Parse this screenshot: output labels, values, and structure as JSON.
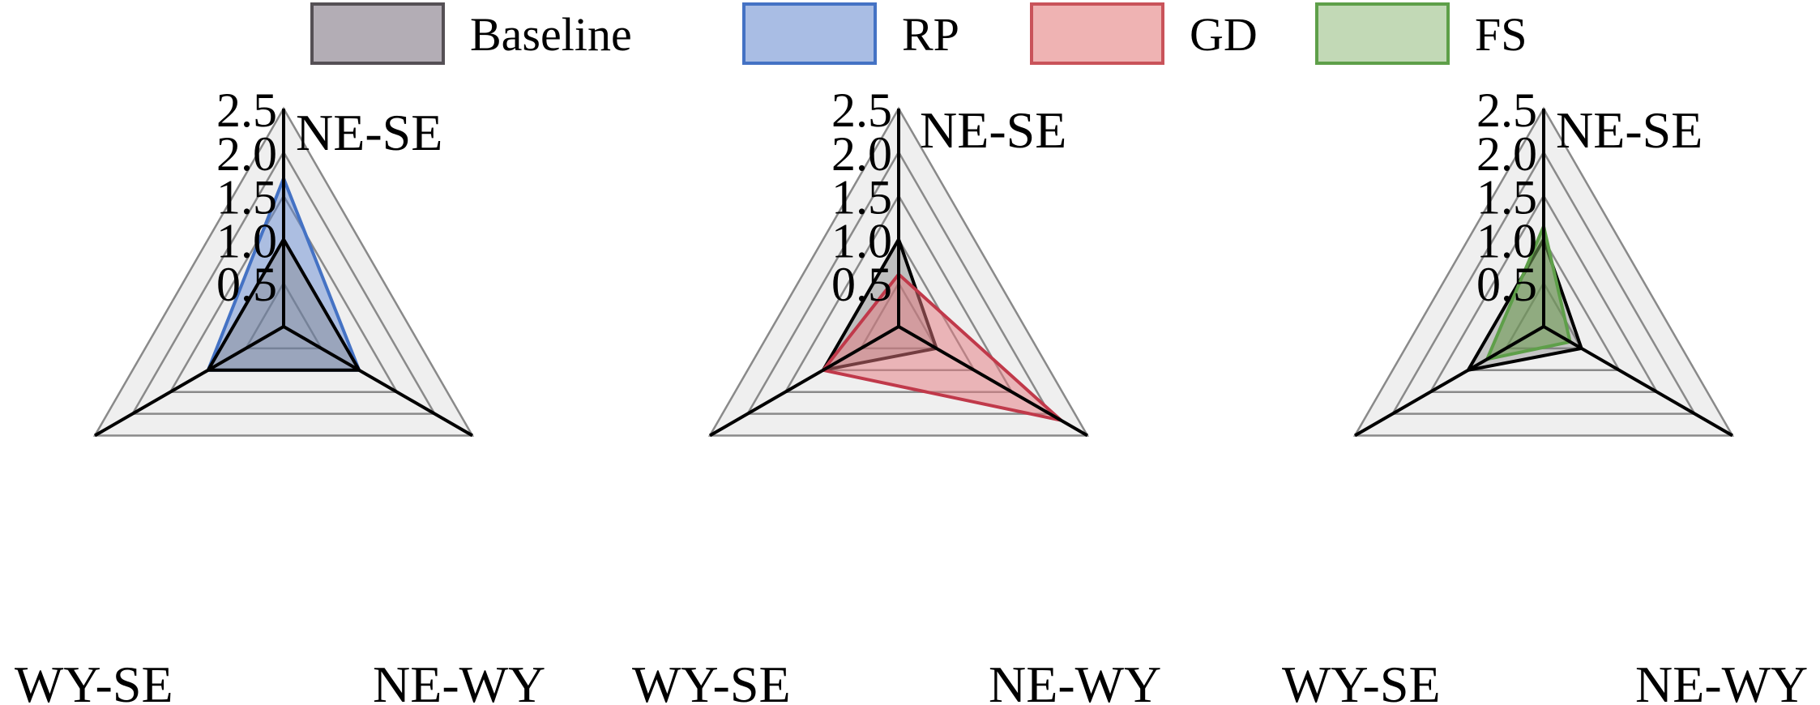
{
  "legend": [
    {
      "label": "Baseline",
      "fill": "#b3adb5",
      "stroke": "#555055"
    },
    {
      "label": "RP",
      "fill": "#a9bde4",
      "stroke": "#4472c4"
    },
    {
      "label": "GD",
      "fill": "#efb3b3",
      "stroke": "#c9535a"
    },
    {
      "label": "FS",
      "fill": "#c2d9b6",
      "stroke": "#5e9f49"
    }
  ],
  "chart_data": [
    {
      "type": "radar",
      "axes": [
        "NE-SE",
        "NE-WY",
        "WY-SE"
      ],
      "ticks": [
        "0.5",
        "1.0",
        "1.5",
        "2.0",
        "2.5"
      ],
      "rlim": [
        0,
        2.5
      ],
      "grid": true,
      "series": [
        {
          "name": "RP",
          "values": [
            1.7,
            1.0,
            1.0
          ],
          "fill": "#5b82d0",
          "fill_opacity": 0.45,
          "stroke": "#4472c4"
        },
        {
          "name": "Baseline",
          "values": [
            1.0,
            1.0,
            1.0
          ],
          "fill": "#777777",
          "fill_opacity": 0.35,
          "stroke": "#000000"
        }
      ]
    },
    {
      "type": "radar",
      "axes": [
        "NE-SE",
        "NE-WY",
        "WY-SE"
      ],
      "ticks": [
        "0.5",
        "1.0",
        "1.5",
        "2.0",
        "2.5"
      ],
      "rlim": [
        0,
        2.5
      ],
      "grid": true,
      "series": [
        {
          "name": "Baseline",
          "values": [
            1.0,
            0.5,
            1.0
          ],
          "fill": "#777777",
          "fill_opacity": 0.4,
          "stroke": "#000000"
        },
        {
          "name": "GD",
          "values": [
            0.6,
            2.15,
            1.0
          ],
          "fill": "#e67a80",
          "fill_opacity": 0.5,
          "stroke": "#c0394a"
        }
      ]
    },
    {
      "type": "radar",
      "axes": [
        "NE-SE",
        "NE-WY",
        "WY-SE"
      ],
      "ticks": [
        "0.5",
        "1.0",
        "1.5",
        "2.0",
        "2.5"
      ],
      "rlim": [
        0,
        2.5
      ],
      "grid": true,
      "series": [
        {
          "name": "Baseline",
          "values": [
            1.0,
            0.5,
            1.0
          ],
          "fill": "#777777",
          "fill_opacity": 0.35,
          "stroke": "#000000"
        },
        {
          "name": "FS",
          "values": [
            1.15,
            0.35,
            0.75
          ],
          "fill": "#6c9a52",
          "fill_opacity": 0.6,
          "stroke": "#5e9f49"
        }
      ]
    }
  ]
}
